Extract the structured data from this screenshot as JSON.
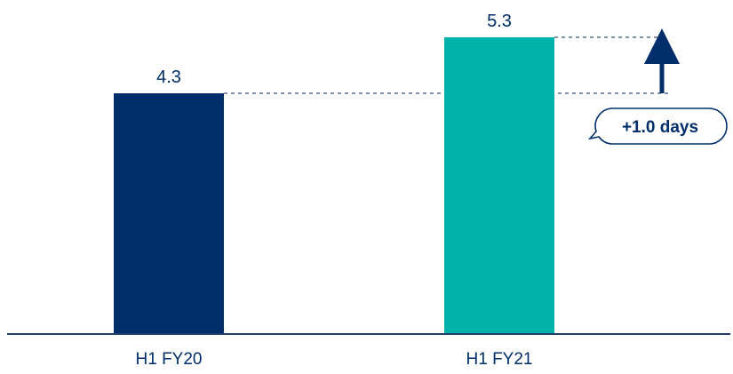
{
  "chart_data": {
    "type": "bar",
    "categories": [
      "H1 FY20",
      "H1 FY21"
    ],
    "values": [
      4.3,
      5.3
    ],
    "value_labels": [
      "4.3",
      "5.3"
    ],
    "title": "",
    "xlabel": "",
    "ylabel": "",
    "ylim": [
      0,
      5.3
    ],
    "grid": false,
    "legend": "none",
    "annotation": {
      "text": "+1.0 days",
      "from_value": 4.3,
      "to_value": 5.3
    }
  },
  "colors": {
    "bars": [
      "#002E6A",
      "#00B2A9"
    ],
    "text": "#002E6A",
    "reference_line": "#3A4F7A",
    "axis": "#1F3C73"
  }
}
